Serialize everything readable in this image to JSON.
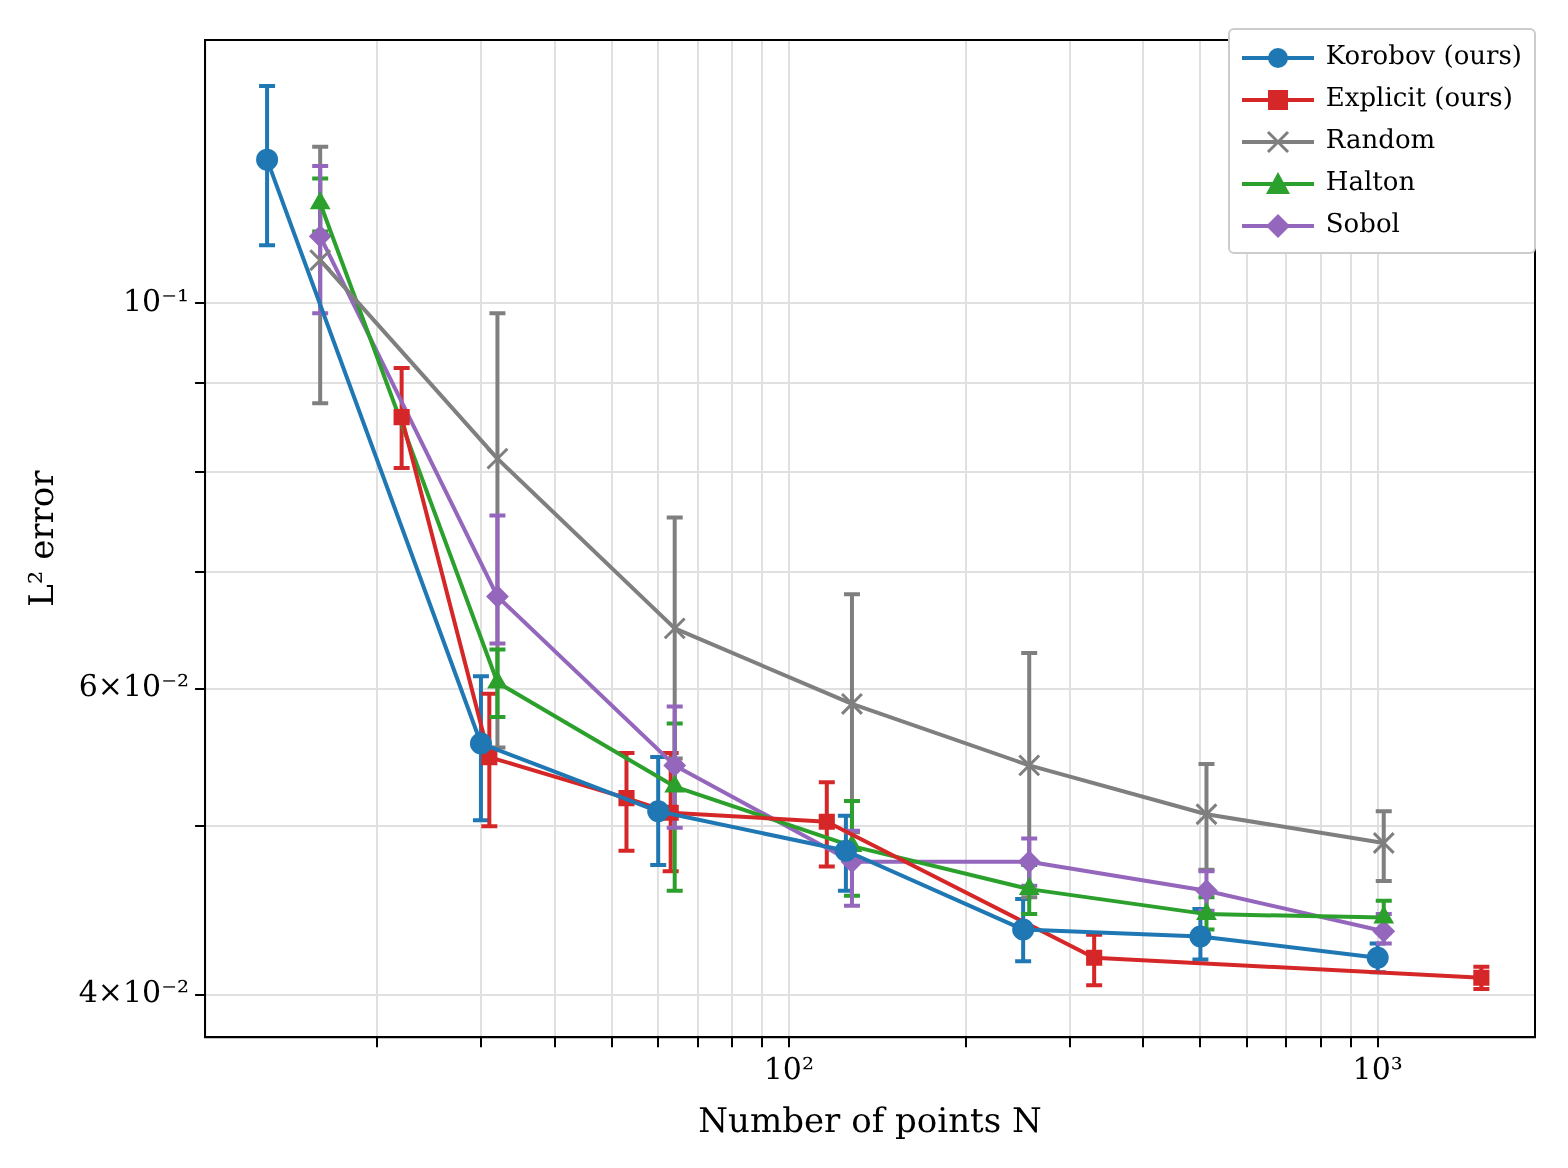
{
  "chart_data": {
    "type": "line",
    "xlabel": "Number of points N",
    "ylabel": "L² error",
    "log": "xy",
    "grid": true,
    "legend": "top right",
    "line_style": "solid",
    "xlim": [
      10.2,
      1850
    ],
    "ylim": [
      0.0378,
      0.1418
    ],
    "xticks": [
      {
        "value": 20,
        "label": null
      },
      {
        "value": 30,
        "label": null
      },
      {
        "value": 40,
        "label": null
      },
      {
        "value": 50,
        "label": null
      },
      {
        "value": 60,
        "label": null
      },
      {
        "value": 70,
        "label": null
      },
      {
        "value": 80,
        "label": null
      },
      {
        "value": 90,
        "label": null
      },
      {
        "value": 100,
        "label": "10²"
      },
      {
        "value": 200,
        "label": null
      },
      {
        "value": 300,
        "label": null
      },
      {
        "value": 400,
        "label": null
      },
      {
        "value": 500,
        "label": null
      },
      {
        "value": 600,
        "label": null
      },
      {
        "value": 700,
        "label": null
      },
      {
        "value": 800,
        "label": null
      },
      {
        "value": 900,
        "label": null
      },
      {
        "value": 1000,
        "label": "10³"
      }
    ],
    "yticks": [
      {
        "value": 0.04,
        "label": "4×10⁻²"
      },
      {
        "value": 0.05,
        "label": null
      },
      {
        "value": 0.06,
        "label": "6×10⁻²"
      },
      {
        "value": 0.07,
        "label": null
      },
      {
        "value": 0.08,
        "label": null
      },
      {
        "value": 0.09,
        "label": null
      },
      {
        "value": 0.1,
        "label": "10⁻¹"
      }
    ],
    "series": [
      {
        "name": "Korobov (ours)",
        "color": "#1f77b4",
        "marker": "circle",
        "x": [
          13,
          30,
          60,
          125,
          250,
          500,
          1000
        ],
        "values": [
          0.121,
          0.0558,
          0.051,
          0.0484,
          0.0436,
          0.0432,
          0.042
        ],
        "errors": [
          [
            0.108,
            0.1334
          ],
          [
            0.0504,
            0.061
          ],
          [
            0.0475,
            0.0548
          ],
          [
            0.0459,
            0.0507
          ],
          [
            0.0418,
            0.0454
          ],
          [
            0.0419,
            0.0448
          ],
          [
            0.0412,
            0.0428
          ]
        ]
      },
      {
        "name": "Explicit (ours)",
        "color": "#d62728",
        "marker": "square",
        "x": [
          22,
          31,
          53,
          63,
          116,
          330,
          1500
        ],
        "values": [
          0.086,
          0.0548,
          0.0519,
          0.0509,
          0.0503,
          0.042,
          0.0409
        ],
        "errors": [
          [
            0.0804,
            0.0918
          ],
          [
            0.05,
            0.0596
          ],
          [
            0.0484,
            0.0551
          ],
          [
            0.0471,
            0.0551
          ],
          [
            0.0474,
            0.053
          ],
          [
            0.0405,
            0.0433
          ],
          [
            0.0403,
            0.0415
          ]
        ]
      },
      {
        "name": "Random",
        "color": "#7f7f7f",
        "marker": "cross",
        "x": [
          16,
          32,
          64,
          128,
          256,
          512,
          1024
        ],
        "values": [
          0.1059,
          0.0814,
          0.065,
          0.0588,
          0.0542,
          0.0508,
          0.0489
        ],
        "errors": [
          [
            0.0876,
            0.1231
          ],
          [
            0.0555,
            0.0987
          ],
          [
            0.0547,
            0.0753
          ],
          [
            0.0496,
            0.068
          ],
          [
            0.0455,
            0.0629
          ],
          [
            0.0472,
            0.0543
          ],
          [
            0.0465,
            0.051
          ]
        ]
      },
      {
        "name": "Halton",
        "color": "#2ca02c",
        "marker": "triangle",
        "x": [
          16,
          32,
          64,
          128,
          256,
          512,
          1024
        ],
        "values": [
          0.1142,
          0.0605,
          0.0527,
          0.0487,
          0.046,
          0.0445,
          0.0443
        ],
        "errors": [
          [
            0.11,
            0.118
          ],
          [
            0.0578,
            0.0632
          ],
          [
            0.0459,
            0.0573
          ],
          [
            0.0456,
            0.0517
          ],
          [
            0.0445,
            0.0475
          ],
          [
            0.0436,
            0.0455
          ],
          [
            0.0434,
            0.0453
          ]
        ]
      },
      {
        "name": "Sobol",
        "color": "#9467bd",
        "marker": "diamond",
        "x": [
          16,
          32,
          64,
          128,
          256,
          512,
          1024
        ],
        "values": [
          0.1093,
          0.0678,
          0.0542,
          0.0477,
          0.0477,
          0.0459,
          0.0435
        ],
        "errors": [
          [
            0.0987,
            0.12
          ],
          [
            0.0637,
            0.0755
          ],
          [
            0.0499,
            0.0586
          ],
          [
            0.045,
            0.0497
          ],
          [
            0.0462,
            0.0492
          ],
          [
            0.0447,
            0.0471
          ],
          [
            0.0428,
            0.0445
          ]
        ]
      }
    ]
  }
}
